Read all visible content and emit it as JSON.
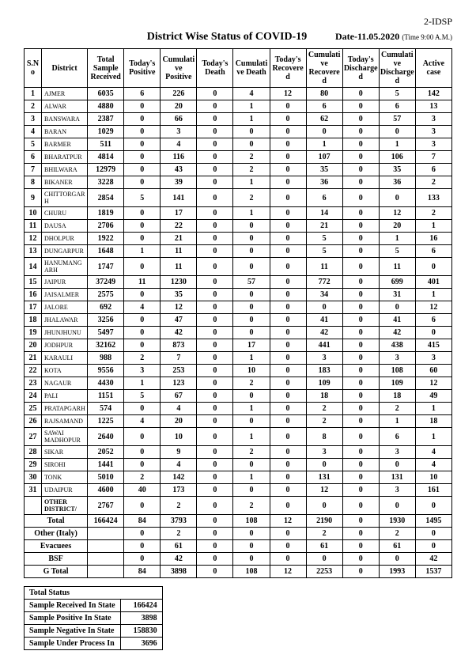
{
  "page_code": "2-IDSP",
  "title": "District Wise Status of COVID-19",
  "date": "Date-11.05.2020",
  "time": "(Time 9:00 A.M.)",
  "columns": [
    "S.No",
    "District",
    "Total Sample Received",
    "Today's Positive",
    "Cumulative Positive",
    "Today's Death",
    "Cumulative Death",
    "Today's Recovered",
    "Cumulative Recovered",
    "Today's Discharged",
    "Cumulative Discharged",
    "Active case"
  ],
  "rows": [
    {
      "sno": "1",
      "district": "AJMER",
      "data": [
        "6035",
        "6",
        "226",
        "0",
        "4",
        "12",
        "80",
        "0",
        "5",
        "142"
      ]
    },
    {
      "sno": "2",
      "district": "ALWAR",
      "data": [
        "4880",
        "0",
        "20",
        "0",
        "1",
        "0",
        "6",
        "0",
        "6",
        "13"
      ]
    },
    {
      "sno": "3",
      "district": "BANSWARA",
      "data": [
        "2387",
        "0",
        "66",
        "0",
        "1",
        "0",
        "62",
        "0",
        "57",
        "3"
      ]
    },
    {
      "sno": "4",
      "district": "BARAN",
      "data": [
        "1029",
        "0",
        "3",
        "0",
        "0",
        "0",
        "0",
        "0",
        "0",
        "3"
      ]
    },
    {
      "sno": "5",
      "district": "BARMER",
      "data": [
        "511",
        "0",
        "4",
        "0",
        "0",
        "0",
        "1",
        "0",
        "1",
        "3"
      ]
    },
    {
      "sno": "6",
      "district": "BHARATPUR",
      "data": [
        "4814",
        "0",
        "116",
        "0",
        "2",
        "0",
        "107",
        "0",
        "106",
        "7"
      ]
    },
    {
      "sno": "7",
      "district": "BHILWARA",
      "data": [
        "12979",
        "0",
        "43",
        "0",
        "2",
        "0",
        "35",
        "0",
        "35",
        "6"
      ]
    },
    {
      "sno": "8",
      "district": "BIKANER",
      "data": [
        "3228",
        "0",
        "39",
        "0",
        "1",
        "0",
        "36",
        "0",
        "36",
        "2"
      ]
    },
    {
      "sno": "9",
      "district": "CHITTORGARH",
      "data": [
        "2854",
        "5",
        "141",
        "0",
        "2",
        "0",
        "6",
        "0",
        "0",
        "133"
      ]
    },
    {
      "sno": "10",
      "district": "CHURU",
      "data": [
        "1819",
        "0",
        "17",
        "0",
        "1",
        "0",
        "14",
        "0",
        "12",
        "2"
      ]
    },
    {
      "sno": "11",
      "district": "DAUSA",
      "data": [
        "2706",
        "0",
        "22",
        "0",
        "0",
        "0",
        "21",
        "0",
        "20",
        "1"
      ]
    },
    {
      "sno": "12",
      "district": "DHOLPUR",
      "data": [
        "1922",
        "0",
        "21",
        "0",
        "0",
        "0",
        "5",
        "0",
        "1",
        "16"
      ]
    },
    {
      "sno": "13",
      "district": "DUNGARPUR",
      "data": [
        "1648",
        "1",
        "11",
        "0",
        "0",
        "0",
        "5",
        "0",
        "5",
        "6"
      ]
    },
    {
      "sno": "14",
      "district": "HANUMANGARH",
      "data": [
        "1747",
        "0",
        "11",
        "0",
        "0",
        "0",
        "11",
        "0",
        "11",
        "0"
      ]
    },
    {
      "sno": "15",
      "district": "JAIPUR",
      "data": [
        "37249",
        "11",
        "1230",
        "0",
        "57",
        "0",
        "772",
        "0",
        "699",
        "401"
      ]
    },
    {
      "sno": "16",
      "district": "JAISALMER",
      "data": [
        "2575",
        "0",
        "35",
        "0",
        "0",
        "0",
        "34",
        "0",
        "31",
        "1"
      ]
    },
    {
      "sno": "17",
      "district": "JALORE",
      "data": [
        "692",
        "4",
        "12",
        "0",
        "0",
        "0",
        "0",
        "0",
        "0",
        "12"
      ]
    },
    {
      "sno": "18",
      "district": "JHALAWAR",
      "data": [
        "3256",
        "0",
        "47",
        "0",
        "0",
        "0",
        "41",
        "0",
        "41",
        "6"
      ]
    },
    {
      "sno": "19",
      "district": "JHUNJHUNU",
      "data": [
        "5497",
        "0",
        "42",
        "0",
        "0",
        "0",
        "42",
        "0",
        "42",
        "0"
      ]
    },
    {
      "sno": "20",
      "district": "JODHPUR",
      "data": [
        "32162",
        "0",
        "873",
        "0",
        "17",
        "0",
        "441",
        "0",
        "438",
        "415"
      ]
    },
    {
      "sno": "21",
      "district": "KARAULI",
      "data": [
        "988",
        "2",
        "7",
        "0",
        "1",
        "0",
        "3",
        "0",
        "3",
        "3"
      ]
    },
    {
      "sno": "22",
      "district": "KOTA",
      "data": [
        "9556",
        "3",
        "253",
        "0",
        "10",
        "0",
        "183",
        "0",
        "108",
        "60"
      ]
    },
    {
      "sno": "23",
      "district": "NAGAUR",
      "data": [
        "4430",
        "1",
        "123",
        "0",
        "2",
        "0",
        "109",
        "0",
        "109",
        "12"
      ]
    },
    {
      "sno": "24",
      "district": "PALI",
      "data": [
        "1151",
        "5",
        "67",
        "0",
        "0",
        "0",
        "18",
        "0",
        "18",
        "49"
      ]
    },
    {
      "sno": "25",
      "district": "PRATAPGARH",
      "data": [
        "574",
        "0",
        "4",
        "0",
        "1",
        "0",
        "2",
        "0",
        "2",
        "1"
      ]
    },
    {
      "sno": "26",
      "district": "RAJSAMAND",
      "data": [
        "1225",
        "4",
        "20",
        "0",
        "0",
        "0",
        "2",
        "0",
        "1",
        "18"
      ]
    },
    {
      "sno": "27",
      "district": "SAWAI MADHOPUR",
      "data": [
        "2640",
        "0",
        "10",
        "0",
        "1",
        "0",
        "8",
        "0",
        "6",
        "1"
      ]
    },
    {
      "sno": "28",
      "district": "SIKAR",
      "data": [
        "2052",
        "0",
        "9",
        "0",
        "2",
        "0",
        "3",
        "0",
        "3",
        "4"
      ]
    },
    {
      "sno": "29",
      "district": "SIROHI",
      "data": [
        "1441",
        "0",
        "4",
        "0",
        "0",
        "0",
        "0",
        "0",
        "0",
        "4"
      ]
    },
    {
      "sno": "30",
      "district": "TONK",
      "data": [
        "5010",
        "2",
        "142",
        "0",
        "1",
        "0",
        "131",
        "0",
        "131",
        "10"
      ]
    },
    {
      "sno": "31",
      "district": "UDAIPUR",
      "data": [
        "4600",
        "40",
        "173",
        "0",
        "0",
        "0",
        "12",
        "0",
        "3",
        "161"
      ]
    }
  ],
  "other_row": {
    "label": "Other District/",
    "data": [
      "2767",
      "0",
      "2",
      "0",
      "2",
      "0",
      "0",
      "0",
      "0",
      "0"
    ]
  },
  "total_row": {
    "label": "Total",
    "data": [
      "166424",
      "84",
      "3793",
      "0",
      "108",
      "12",
      "2190",
      "0",
      "1930",
      "1495"
    ]
  },
  "extra_rows": [
    {
      "label": "Other (Italy)",
      "data": [
        "",
        "0",
        "2",
        "0",
        "0",
        "0",
        "2",
        "0",
        "2",
        "0"
      ]
    },
    {
      "label": "Evacuees",
      "data": [
        "",
        "0",
        "61",
        "0",
        "0",
        "0",
        "61",
        "0",
        "61",
        "0"
      ]
    },
    {
      "label": "BSF",
      "data": [
        "",
        "0",
        "42",
        "0",
        "0",
        "0",
        "0",
        "0",
        "0",
        "42"
      ]
    },
    {
      "label": "G Total",
      "data": [
        "",
        "84",
        "3898",
        "0",
        "108",
        "12",
        "2253",
        "0",
        "1993",
        "1537"
      ],
      "bold": true
    }
  ],
  "summary": {
    "title": "Total Status",
    "rows": [
      {
        "label": "Sample Received In State",
        "value": "166424"
      },
      {
        "label": "Sample Positive In State",
        "value": "3898"
      },
      {
        "label": "Sample Negative In State",
        "value": "158830"
      },
      {
        "label": "Sample Under Process In",
        "value": "3696"
      }
    ]
  }
}
